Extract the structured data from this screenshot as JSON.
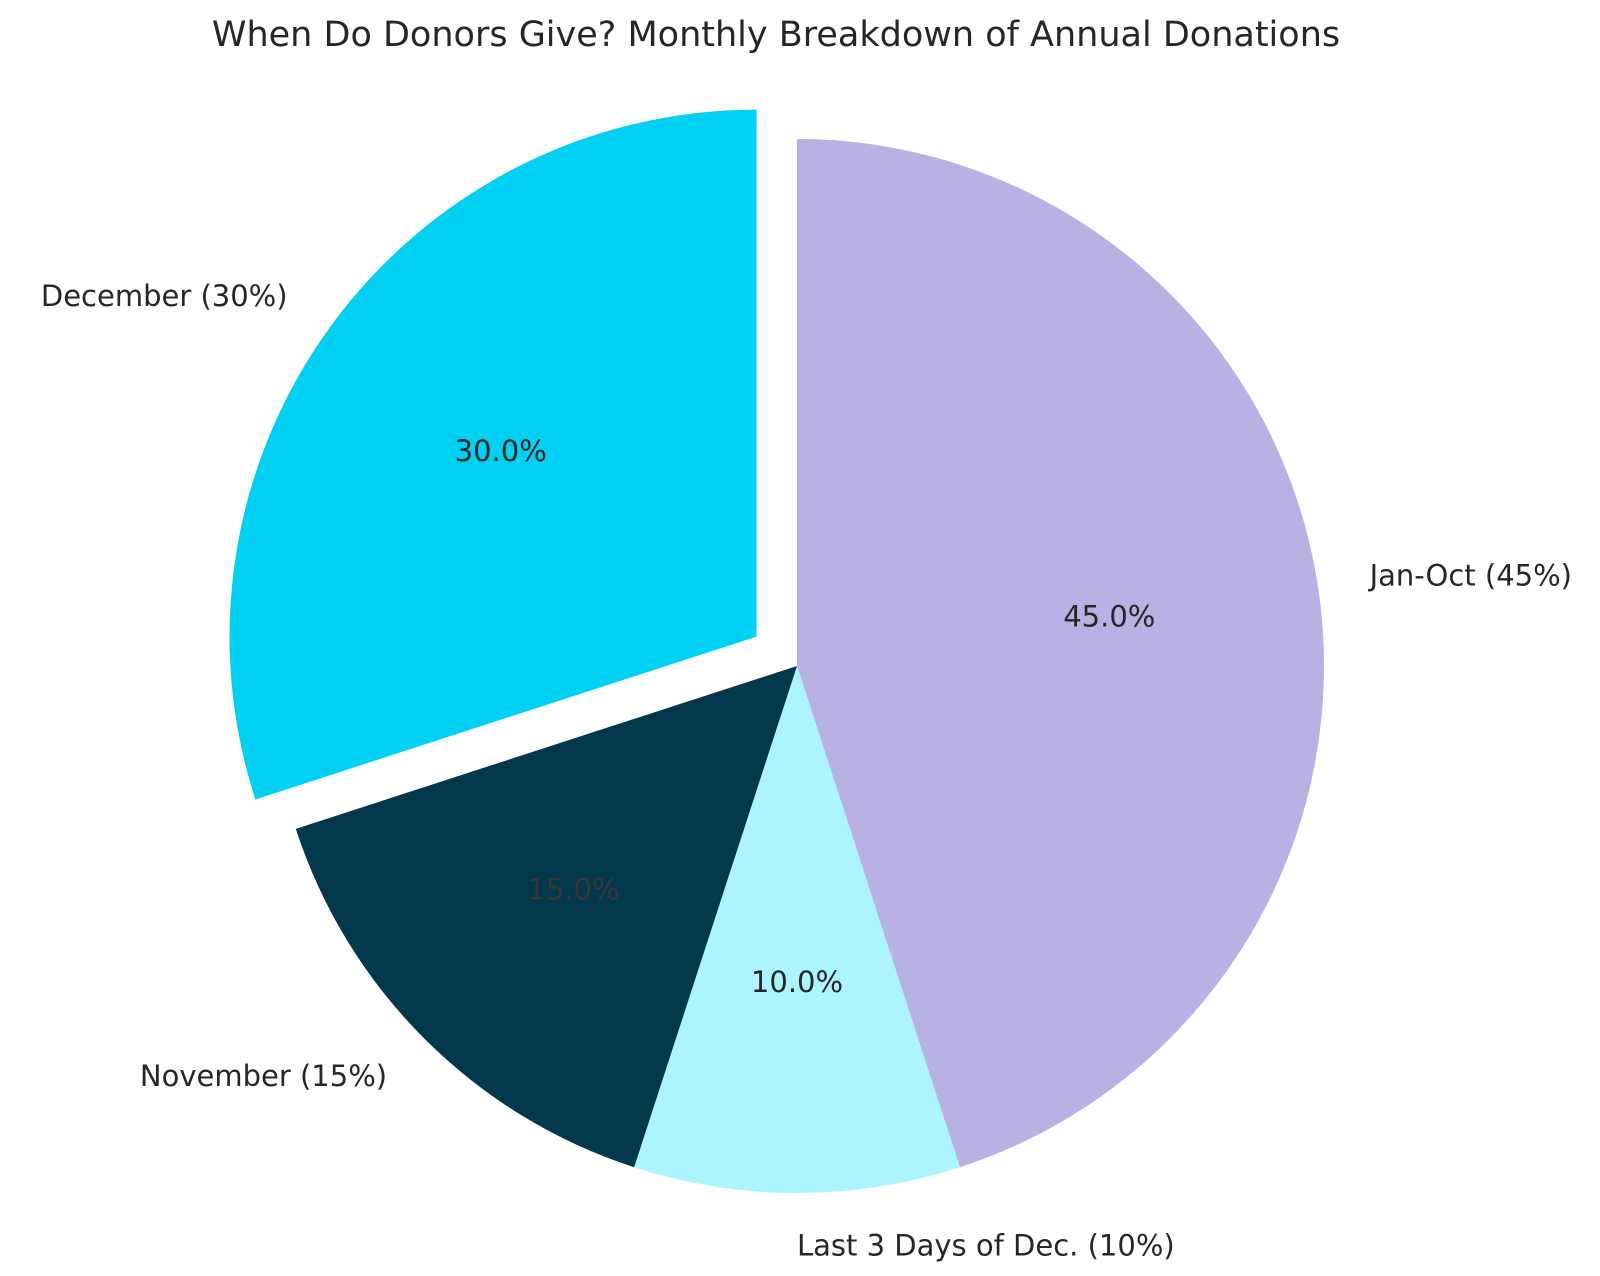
{
  "chart_data": {
    "type": "pie",
    "title": "When Do Donors Give? Monthly Breakdown of Annual Donations",
    "slices": [
      {
        "label": "Jan-Oct (45%)",
        "value": 45.0,
        "pct_label": "45.0%",
        "color": "#b8b1e4",
        "text_color": "#262626",
        "exploded": false
      },
      {
        "label": "Last 3 Days of Dec. (10%)",
        "value": 10.0,
        "pct_label": "10.0%",
        "color": "#adf5fe",
        "text_color": "#262626",
        "exploded": false
      },
      {
        "label": "November (15%)",
        "value": 15.0,
        "pct_label": "15.0%",
        "color": "#02384c",
        "text_color": "#3b3636",
        "exploded": false
      },
      {
        "label": "December (30%)",
        "value": 30.0,
        "pct_label": "30.0%",
        "color": "#00d0f1",
        "text_color": "#262626",
        "exploded": true
      }
    ],
    "start_angle": "12 o'clock",
    "direction": "clockwise",
    "legend": "none"
  }
}
